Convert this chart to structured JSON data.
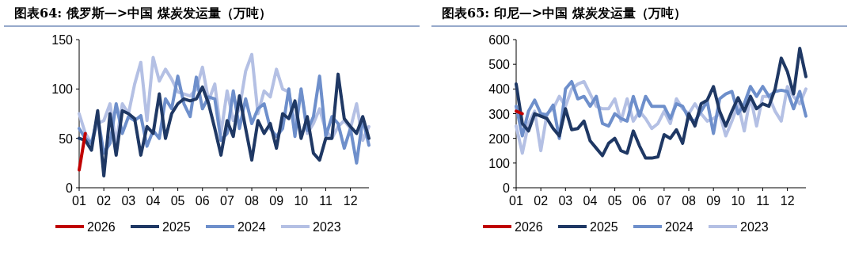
{
  "chart_data": [
    {
      "type": "line",
      "title": "图表64:  俄罗斯—>中国  煤炭发运量（万吨）",
      "legend": "bottom",
      "grid": false,
      "x": [
        1,
        1.25,
        1.5,
        1.75,
        2,
        2.25,
        2.5,
        2.75,
        3,
        3.25,
        3.5,
        3.75,
        4,
        4.25,
        4.5,
        4.75,
        5,
        5.25,
        5.5,
        5.75,
        6,
        6.25,
        6.5,
        6.75,
        7,
        7.25,
        7.5,
        7.75,
        8,
        8.25,
        8.5,
        8.75,
        9,
        9.25,
        9.5,
        9.75,
        10,
        10.25,
        10.5,
        10.75,
        11,
        11.25,
        11.5,
        11.75,
        12,
        12.25,
        12.5,
        12.75
      ],
      "xlim": [
        1,
        12.75
      ],
      "xticks": [
        {
          "value": 1,
          "label": "01"
        },
        {
          "value": 2,
          "label": "02"
        },
        {
          "value": 3,
          "label": "03"
        },
        {
          "value": 4,
          "label": "04"
        },
        {
          "value": 5,
          "label": "05"
        },
        {
          "value": 6,
          "label": "06"
        },
        {
          "value": 7,
          "label": "07"
        },
        {
          "value": 8,
          "label": "08"
        },
        {
          "value": 9,
          "label": "09"
        },
        {
          "value": 10,
          "label": "10"
        },
        {
          "value": 11,
          "label": "11"
        },
        {
          "value": 12,
          "label": "12"
        }
      ],
      "ylim": [
        0,
        150
      ],
      "yticks": [
        0,
        50,
        100,
        150
      ],
      "series": [
        {
          "name": "2026",
          "color": "#c00000",
          "values": [
            18,
            55,
            null,
            null,
            null,
            null,
            null,
            null,
            null,
            null,
            null,
            null,
            null,
            null,
            null,
            null,
            null,
            null,
            null,
            null,
            null,
            null,
            null,
            null,
            null,
            null,
            null,
            null,
            null,
            null,
            null,
            null,
            null,
            null,
            null,
            null,
            null,
            null,
            null,
            null,
            null,
            null,
            null,
            null,
            null,
            null,
            null,
            null
          ]
        },
        {
          "name": "2025",
          "color": "#1f3864",
          "values": [
            50,
            48,
            38,
            78,
            12,
            75,
            33,
            78,
            75,
            70,
            33,
            62,
            55,
            95,
            50,
            75,
            85,
            90,
            88,
            90,
            102,
            85,
            60,
            33,
            68,
            52,
            93,
            60,
            28,
            68,
            55,
            65,
            40,
            75,
            70,
            88,
            50,
            72,
            35,
            28,
            50,
            50,
            115,
            70,
            62,
            55,
            72,
            50
          ]
        },
        {
          "name": "2024",
          "color": "#6e8fcb",
          "values": [
            60,
            50,
            45,
            72,
            35,
            45,
            85,
            55,
            72,
            68,
            73,
            42,
            58,
            50,
            90,
            80,
            113,
            85,
            72,
            112,
            80,
            92,
            90,
            48,
            55,
            98,
            60,
            90,
            65,
            80,
            85,
            60,
            52,
            60,
            100,
            52,
            100,
            58,
            72,
            113,
            52,
            72,
            65,
            40,
            60,
            25,
            70,
            43
          ]
        },
        {
          "name": "2023",
          "color": "#b4c0e4",
          "values": [
            75,
            55,
            45,
            65,
            68,
            85,
            45,
            85,
            75,
            105,
            127,
            68,
            132,
            108,
            120,
            110,
            97,
            95,
            93,
            100,
            122,
            88,
            105,
            55,
            98,
            68,
            80,
            118,
            135,
            75,
            98,
            92,
            120,
            100,
            97,
            65,
            98,
            55,
            65,
            80,
            58,
            50,
            62,
            68,
            60,
            85,
            48,
            62
          ]
        }
      ]
    },
    {
      "type": "line",
      "title": "图表65:  印尼—>中国  煤炭发运量（万吨）",
      "legend": "bottom",
      "grid": false,
      "x": [
        1,
        1.25,
        1.5,
        1.75,
        2,
        2.25,
        2.5,
        2.75,
        3,
        3.25,
        3.5,
        3.75,
        4,
        4.25,
        4.5,
        4.75,
        5,
        5.25,
        5.5,
        5.75,
        6,
        6.25,
        6.5,
        6.75,
        7,
        7.25,
        7.5,
        7.75,
        8,
        8.25,
        8.5,
        8.75,
        9,
        9.25,
        9.5,
        9.75,
        10,
        10.25,
        10.5,
        10.75,
        11,
        11.25,
        11.5,
        11.75,
        12,
        12.25,
        12.5,
        12.75
      ],
      "xlim": [
        1,
        12.75
      ],
      "xticks": [
        {
          "value": 1,
          "label": "01"
        },
        {
          "value": 2,
          "label": "02"
        },
        {
          "value": 3,
          "label": "03"
        },
        {
          "value": 4,
          "label": "04"
        },
        {
          "value": 5,
          "label": "05"
        },
        {
          "value": 6,
          "label": "06"
        },
        {
          "value": 7,
          "label": "07"
        },
        {
          "value": 8,
          "label": "08"
        },
        {
          "value": 9,
          "label": "09"
        },
        {
          "value": 10,
          "label": "10"
        },
        {
          "value": 11,
          "label": "11"
        },
        {
          "value": 12,
          "label": "12"
        }
      ],
      "ylim": [
        0,
        600
      ],
      "yticks": [
        0,
        100,
        200,
        300,
        400,
        500,
        600
      ],
      "series": [
        {
          "name": "2026",
          "color": "#c00000",
          "values": [
            310,
            300,
            null,
            null,
            null,
            null,
            null,
            null,
            null,
            null,
            null,
            null,
            null,
            null,
            null,
            null,
            null,
            null,
            null,
            null,
            null,
            null,
            null,
            null,
            null,
            null,
            null,
            null,
            null,
            null,
            null,
            null,
            null,
            null,
            null,
            null,
            null,
            null,
            null,
            null,
            null,
            null,
            null,
            null,
            null,
            null,
            null,
            null
          ]
        },
        {
          "name": "2025",
          "color": "#1f3864",
          "values": [
            420,
            260,
            230,
            300,
            290,
            280,
            240,
            210,
            320,
            235,
            240,
            270,
            190,
            160,
            130,
            180,
            200,
            150,
            140,
            230,
            170,
            120,
            120,
            125,
            215,
            200,
            235,
            180,
            300,
            250,
            340,
            355,
            410,
            310,
            250,
            310,
            365,
            310,
            370,
            320,
            340,
            330,
            400,
            525,
            470,
            380,
            565,
            450
          ]
        },
        {
          "name": "2024",
          "color": "#6e8fcb",
          "values": [
            330,
            210,
            310,
            355,
            300,
            295,
            335,
            200,
            400,
            430,
            360,
            370,
            330,
            370,
            260,
            250,
            300,
            280,
            270,
            370,
            290,
            370,
            330,
            330,
            330,
            280,
            340,
            330,
            280,
            270,
            310,
            350,
            220,
            360,
            380,
            390,
            300,
            340,
            410,
            370,
            410,
            370,
            390,
            395,
            390,
            320,
            390,
            290
          ]
        },
        {
          "name": "2023",
          "color": "#b4c0e4",
          "values": [
            250,
            140,
            260,
            310,
            150,
            300,
            320,
            370,
            330,
            400,
            420,
            430,
            380,
            330,
            320,
            320,
            360,
            270,
            360,
            270,
            310,
            280,
            240,
            260,
            310,
            260,
            360,
            320,
            300,
            340,
            300,
            270,
            280,
            300,
            210,
            270,
            340,
            230,
            370,
            250,
            370,
            370,
            310,
            270,
            410,
            370,
            340,
            400
          ]
        }
      ]
    }
  ]
}
